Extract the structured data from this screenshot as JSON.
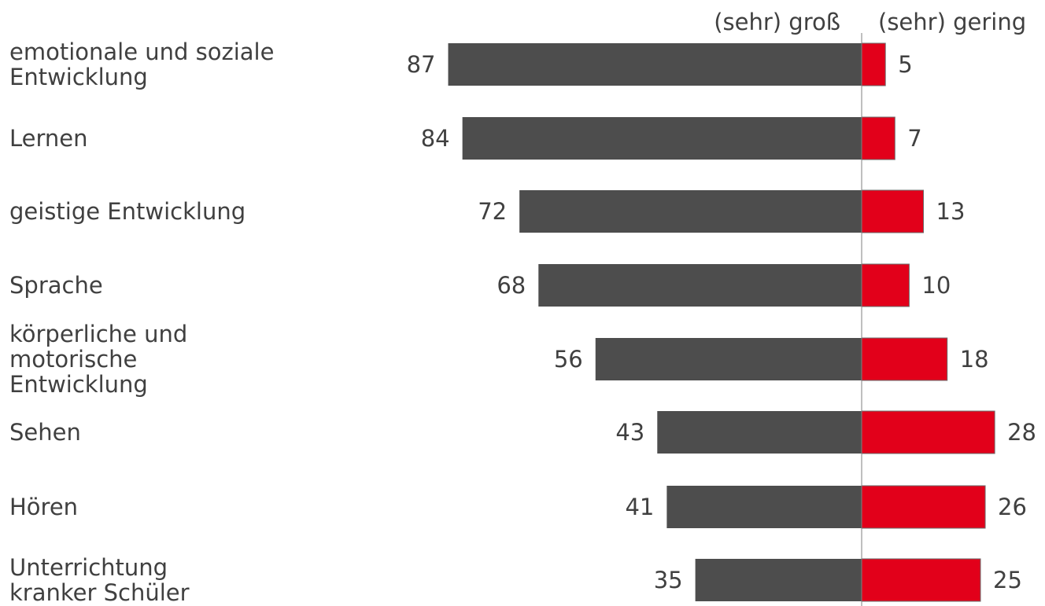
{
  "chart_data": {
    "type": "bar",
    "orientation": "horizontal-diverging",
    "header_left": "(sehr) groß",
    "header_right": "(sehr) gering",
    "categories": [
      [
        "emotionale und soziale",
        "Entwicklung"
      ],
      [
        "Lernen"
      ],
      [
        "geistige Entwicklung"
      ],
      [
        "Sprache"
      ],
      [
        "körperliche und",
        "motorische",
        "Entwicklung"
      ],
      [
        "Sehen"
      ],
      [
        "Hören"
      ],
      [
        "Unterrichtung",
        "kranker Schüler"
      ]
    ],
    "series": [
      {
        "name": "(sehr) groß",
        "color": "#4d4d4d",
        "values": [
          87,
          84,
          72,
          68,
          56,
          43,
          41,
          35
        ]
      },
      {
        "name": "(sehr) gering",
        "color": "#e2001a",
        "values": [
          5,
          7,
          13,
          10,
          18,
          28,
          26,
          25
        ]
      }
    ]
  }
}
